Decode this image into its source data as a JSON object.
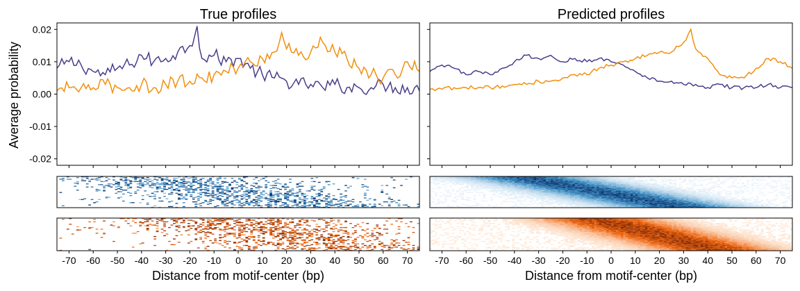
{
  "figure": {
    "ylabel": "Average probability",
    "xlabel": "Distance from motif-center (bp)"
  },
  "chart_data": [
    {
      "type": "line",
      "title": "True profiles",
      "xlim": [
        -75,
        75
      ],
      "ylim": [
        -0.022,
        0.022
      ],
      "yticks": [
        0.02,
        0.01,
        0.0,
        -0.01,
        -0.02
      ],
      "ytick_labels": [
        "0.02",
        "0.01",
        "0.00",
        "-0.01",
        "-0.02"
      ],
      "series": [
        {
          "color": "#483d8b",
          "x": [
            -75,
            -70,
            -65,
            -60,
            -55,
            -50,
            -45,
            -40,
            -35,
            -30,
            -25,
            -20,
            -17,
            -15,
            -10,
            -5,
            0,
            5,
            10,
            15,
            20,
            25,
            30,
            35,
            40,
            45,
            50,
            55,
            60,
            65,
            70,
            75
          ],
          "y": [
            0.008,
            0.01,
            0.009,
            0.007,
            0.006,
            0.008,
            0.009,
            0.012,
            0.01,
            0.011,
            0.013,
            0.015,
            0.021,
            0.011,
            0.012,
            0.01,
            0.011,
            0.008,
            0.006,
            0.005,
            0.004,
            0.003,
            0.003,
            0.002,
            0.003,
            0.002,
            0.002,
            0.002,
            0.003,
            0.002,
            0.002,
            0.001
          ]
        },
        {
          "color": "#f28e0c",
          "x": [
            -75,
            -70,
            -65,
            -60,
            -55,
            -50,
            -45,
            -40,
            -35,
            -30,
            -25,
            -20,
            -15,
            -10,
            -5,
            0,
            5,
            10,
            15,
            18,
            20,
            25,
            30,
            35,
            40,
            45,
            50,
            55,
            60,
            65,
            70,
            75
          ],
          "y": [
            0.001,
            0.002,
            0.002,
            0.002,
            0.003,
            0.002,
            0.002,
            0.003,
            0.002,
            0.003,
            0.004,
            0.004,
            0.005,
            0.006,
            0.007,
            0.008,
            0.01,
            0.011,
            0.013,
            0.019,
            0.014,
            0.012,
            0.013,
            0.016,
            0.013,
            0.011,
            0.008,
            0.006,
            0.005,
            0.006,
            0.01,
            0.007
          ]
        }
      ],
      "heatmaps": [
        {
          "colormap": "blues",
          "pattern": "sparse",
          "rows": 40,
          "cols": 150
        },
        {
          "colormap": "oranges",
          "pattern": "sparse",
          "rows": 40,
          "cols": 150
        }
      ]
    },
    {
      "type": "line",
      "title": "Predicted profiles",
      "xlim": [
        -75,
        75
      ],
      "ylim": [
        -0.022,
        0.022
      ],
      "yticks": [
        0.02,
        0.01,
        0.0,
        -0.01,
        -0.02
      ],
      "ytick_labels": [
        "",
        "",
        "",
        "",
        ""
      ],
      "series": [
        {
          "color": "#483d8b",
          "x": [
            -75,
            -70,
            -65,
            -60,
            -55,
            -50,
            -45,
            -40,
            -35,
            -30,
            -25,
            -20,
            -15,
            -10,
            -5,
            0,
            5,
            10,
            15,
            20,
            25,
            30,
            35,
            40,
            45,
            50,
            55,
            60,
            65,
            70,
            75
          ],
          "y": [
            0.007,
            0.009,
            0.008,
            0.006,
            0.007,
            0.006,
            0.008,
            0.01,
            0.012,
            0.011,
            0.012,
            0.01,
            0.011,
            0.01,
            0.011,
            0.01,
            0.009,
            0.007,
            0.005,
            0.004,
            0.004,
            0.003,
            0.003,
            0.002,
            0.003,
            0.002,
            0.002,
            0.002,
            0.003,
            0.002,
            0.002
          ]
        },
        {
          "color": "#f28e0c",
          "x": [
            -75,
            -70,
            -65,
            -60,
            -55,
            -50,
            -45,
            -40,
            -35,
            -30,
            -25,
            -20,
            -15,
            -10,
            -5,
            0,
            5,
            10,
            15,
            20,
            25,
            30,
            33,
            35,
            40,
            45,
            50,
            55,
            60,
            65,
            70,
            75
          ],
          "y": [
            0.0015,
            0.0015,
            0.002,
            0.002,
            0.002,
            0.002,
            0.0025,
            0.003,
            0.003,
            0.004,
            0.004,
            0.005,
            0.006,
            0.006,
            0.008,
            0.009,
            0.01,
            0.011,
            0.012,
            0.013,
            0.013,
            0.016,
            0.02,
            0.014,
            0.011,
            0.006,
            0.005,
            0.005,
            0.008,
            0.011,
            0.01,
            0.008
          ]
        }
      ],
      "heatmaps": [
        {
          "colormap": "blues",
          "pattern": "smooth",
          "rows": 40,
          "cols": 150
        },
        {
          "colormap": "oranges",
          "pattern": "smooth",
          "rows": 40,
          "cols": 150
        }
      ]
    }
  ],
  "xticks": [
    -70,
    -60,
    -50,
    -40,
    -30,
    -20,
    -10,
    0,
    10,
    20,
    30,
    40,
    50,
    60,
    70
  ],
  "xtick_labels": [
    "-70",
    "-60",
    "-50",
    "-40",
    "-30",
    "-20",
    "-10",
    "0",
    "10",
    "20",
    "30",
    "40",
    "50",
    "60",
    "70"
  ]
}
